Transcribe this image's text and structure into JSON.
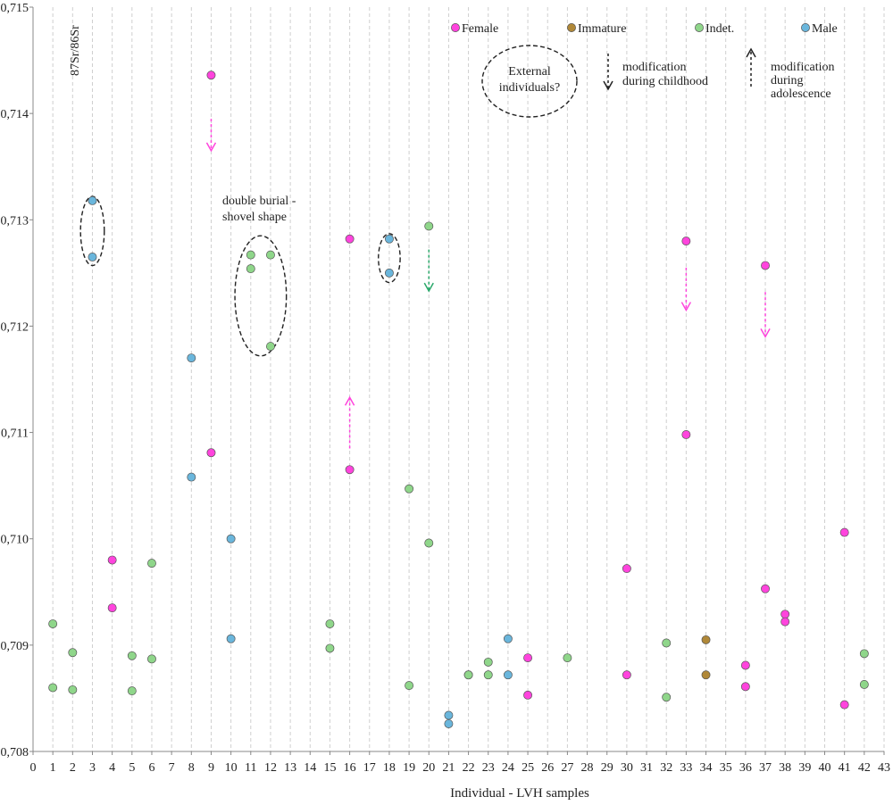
{
  "chart_data": {
    "type": "scatter",
    "title": "",
    "xlabel": "Individual  - LVH samples",
    "ylabel": "87Sr/86Sr",
    "xlim": [
      0,
      43
    ],
    "ylim": [
      0.708,
      0.715
    ],
    "yticks": [
      "0,708",
      "0,709",
      "0,710",
      "0,711",
      "0,712",
      "0,713",
      "0,714",
      "0,715"
    ],
    "xtick_labels": [
      "0",
      "1",
      "2",
      "3",
      "4",
      "5",
      "6",
      "7",
      "8",
      "9",
      "10",
      "11",
      "12",
      "13",
      "14",
      "15",
      "16",
      "17",
      "18",
      "19",
      "20",
      "21",
      "22",
      "23",
      "24",
      "25",
      "26",
      "27",
      "28",
      "29",
      "30",
      "31",
      "32",
      "33",
      "34",
      "35",
      "36",
      "37",
      "38",
      "39",
      "40",
      "41",
      "42",
      "43"
    ],
    "grid": "vertical dashed",
    "legend_position": "top-right",
    "series": [
      {
        "name": "Female",
        "color": "#ff44dd",
        "points": [
          {
            "x": 4,
            "y": 0.7098
          },
          {
            "x": 4,
            "y": 0.70935
          },
          {
            "x": 9,
            "y": 0.71436
          },
          {
            "x": 9,
            "y": 0.71081
          },
          {
            "x": 16,
            "y": 0.71282
          },
          {
            "x": 16,
            "y": 0.71065
          },
          {
            "x": 25,
            "y": 0.70888
          },
          {
            "x": 25,
            "y": 0.70853
          },
          {
            "x": 30,
            "y": 0.70972
          },
          {
            "x": 30,
            "y": 0.70872
          },
          {
            "x": 33,
            "y": 0.7128
          },
          {
            "x": 33,
            "y": 0.71098
          },
          {
            "x": 36,
            "y": 0.70881
          },
          {
            "x": 36,
            "y": 0.70861
          },
          {
            "x": 37,
            "y": 0.71257
          },
          {
            "x": 37,
            "y": 0.70953
          },
          {
            "x": 38,
            "y": 0.70929
          },
          {
            "x": 38,
            "y": 0.70922
          },
          {
            "x": 41,
            "y": 0.71006
          },
          {
            "x": 41,
            "y": 0.70844
          }
        ]
      },
      {
        "name": "Immature",
        "color": "#b08838",
        "points": [
          {
            "x": 34,
            "y": 0.70905
          },
          {
            "x": 34,
            "y": 0.70872
          }
        ]
      },
      {
        "name": "Indet.",
        "color": "#8fd68a",
        "points": [
          {
            "x": 1,
            "y": 0.7092
          },
          {
            "x": 1,
            "y": 0.7086
          },
          {
            "x": 2,
            "y": 0.70893
          },
          {
            "x": 2,
            "y": 0.70858
          },
          {
            "x": 5,
            "y": 0.7089
          },
          {
            "x": 5,
            "y": 0.70857
          },
          {
            "x": 6,
            "y": 0.70977
          },
          {
            "x": 6,
            "y": 0.70887
          },
          {
            "x": 11,
            "y": 0.71267
          },
          {
            "x": 11,
            "y": 0.71254
          },
          {
            "x": 12,
            "y": 0.71267
          },
          {
            "x": 12,
            "y": 0.71181
          },
          {
            "x": 15,
            "y": 0.7092
          },
          {
            "x": 15,
            "y": 0.70897
          },
          {
            "x": 19,
            "y": 0.71047
          },
          {
            "x": 19,
            "y": 0.70862
          },
          {
            "x": 20,
            "y": 0.71294
          },
          {
            "x": 20,
            "y": 0.70996
          },
          {
            "x": 22,
            "y": 0.70872
          },
          {
            "x": 22,
            "y": 0.70872
          },
          {
            "x": 23,
            "y": 0.70884
          },
          {
            "x": 23,
            "y": 0.70872
          },
          {
            "x": 27,
            "y": 0.70888
          },
          {
            "x": 32,
            "y": 0.70902
          },
          {
            "x": 32,
            "y": 0.70851
          },
          {
            "x": 42,
            "y": 0.70892
          },
          {
            "x": 42,
            "y": 0.70863
          }
        ]
      },
      {
        "name": "Male",
        "color": "#6ab6dc",
        "points": [
          {
            "x": 3,
            "y": 0.71318
          },
          {
            "x": 3,
            "y": 0.71265
          },
          {
            "x": 8,
            "y": 0.7117
          },
          {
            "x": 8,
            "y": 0.71058
          },
          {
            "x": 10,
            "y": 0.71
          },
          {
            "x": 10,
            "y": 0.70906
          },
          {
            "x": 18,
            "y": 0.71282
          },
          {
            "x": 18,
            "y": 0.7125
          },
          {
            "x": 21,
            "y": 0.70834
          },
          {
            "x": 21,
            "y": 0.70826
          },
          {
            "x": 24,
            "y": 0.70906
          },
          {
            "x": 24,
            "y": 0.70872
          }
        ]
      }
    ],
    "arrows": [
      {
        "x": 9,
        "from": 0.71395,
        "to": 0.71365,
        "color": "#ff44dd",
        "direction": "down"
      },
      {
        "x": 16,
        "from": 0.71085,
        "to": 0.71133,
        "color": "#ff44dd",
        "direction": "up"
      },
      {
        "x": 20,
        "from": 0.71272,
        "to": 0.71233,
        "color": "#2aa86a",
        "direction": "down"
      },
      {
        "x": 33,
        "from": 0.71255,
        "to": 0.71215,
        "color": "#ff44dd",
        "direction": "down"
      },
      {
        "x": 37,
        "from": 0.71232,
        "to": 0.7119,
        "color": "#ff44dd",
        "direction": "down"
      }
    ],
    "ellipses": [
      {
        "x": 3,
        "y_top": 0.71322,
        "y_bottom": 0.71257,
        "x_halfwidth": 0.6
      },
      {
        "x": 11.5,
        "y_top": 0.71285,
        "y_bottom": 0.71172,
        "x_halfwidth": 1.3
      },
      {
        "x": 18,
        "y_top": 0.71287,
        "y_bottom": 0.71241,
        "x_halfwidth": 0.55
      }
    ],
    "annotations": {
      "double_burial": [
        "double burial -",
        "shovel shape"
      ],
      "external": [
        "External",
        "individuals?"
      ],
      "childhood": [
        "modification",
        "during  childhood"
      ],
      "adolescence": [
        "modification",
        "during",
        "adolescence"
      ]
    }
  }
}
